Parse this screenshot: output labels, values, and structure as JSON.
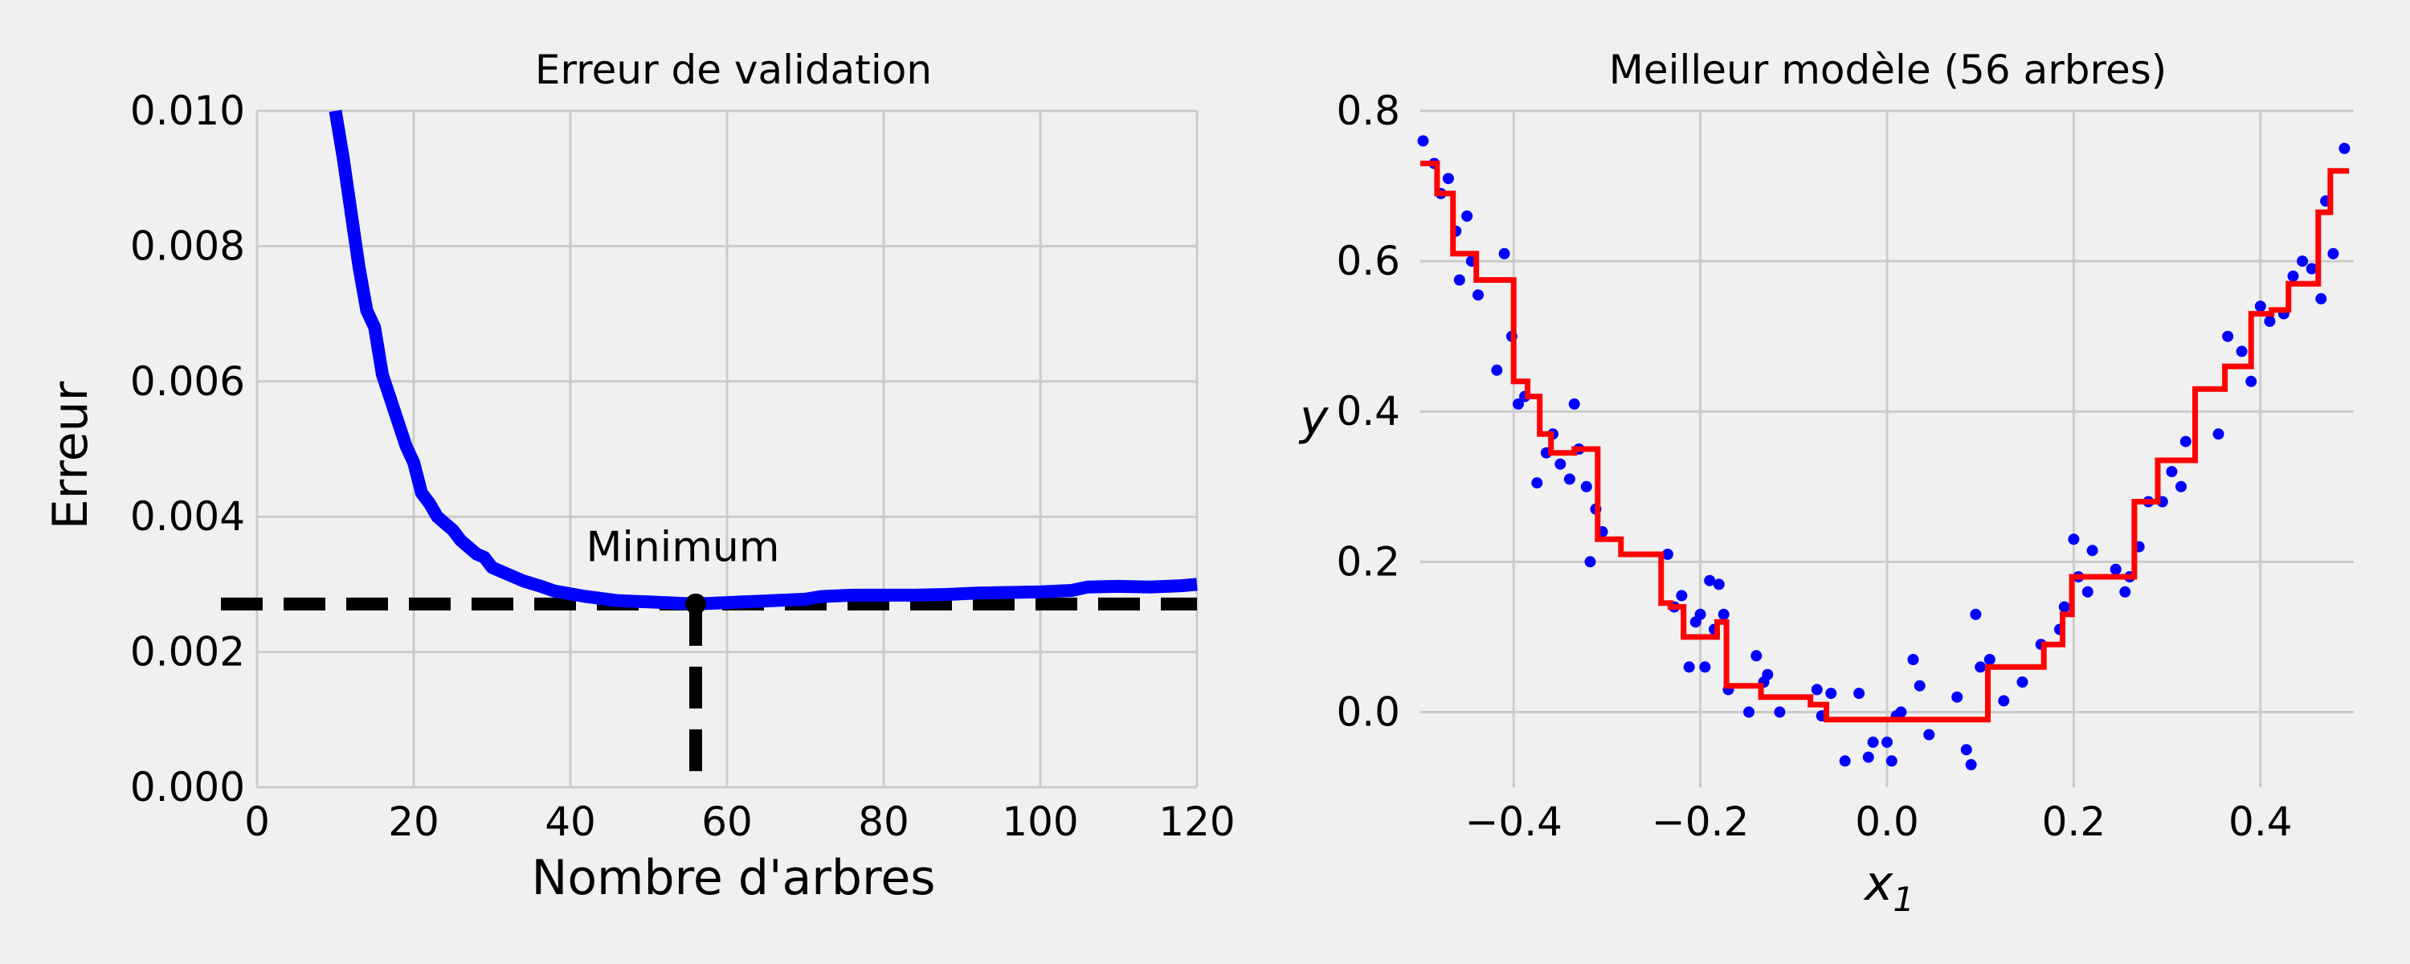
{
  "chart_data": [
    {
      "type": "line",
      "title": "Erreur de validation",
      "xlabel": "Nombre d'arbres",
      "ylabel": "Erreur",
      "xlim": [
        0,
        120
      ],
      "ylim": [
        0.0,
        0.01
      ],
      "xticks": [
        "0",
        "20",
        "40",
        "60",
        "80",
        "100",
        "120"
      ],
      "yticks": [
        "0.000",
        "0.002",
        "0.004",
        "0.006",
        "0.008",
        "0.010"
      ],
      "grid": true,
      "series": [
        {
          "color": "#0000ff",
          "x": [
            10,
            11,
            12,
            13,
            14,
            15,
            16,
            17,
            18,
            19,
            20,
            21,
            22,
            23,
            24,
            25,
            26,
            27,
            28,
            29,
            30,
            32,
            34,
            36,
            38,
            40,
            42,
            44,
            46,
            48,
            50,
            52,
            54,
            56,
            58,
            60,
            62,
            64,
            66,
            68,
            70,
            72,
            74,
            76,
            78,
            80,
            84,
            88,
            92,
            96,
            100,
            104,
            106,
            110,
            114,
            118,
            120
          ],
          "y": [
            0.01,
            0.0093,
            0.0085,
            0.0077,
            0.00705,
            0.0068,
            0.0061,
            0.00575,
            0.0054,
            0.00505,
            0.0048,
            0.00435,
            0.0042,
            0.004,
            0.0039,
            0.0038,
            0.00365,
            0.00355,
            0.00345,
            0.0034,
            0.00325,
            0.00315,
            0.00305,
            0.00298,
            0.0029,
            0.00286,
            0.00282,
            0.00279,
            0.00276,
            0.00275,
            0.00274,
            0.00273,
            0.00272,
            0.00271,
            0.00272,
            0.00273,
            0.00274,
            0.00275,
            0.00276,
            0.00277,
            0.00278,
            0.00282,
            0.00283,
            0.00284,
            0.00284,
            0.00284,
            0.00284,
            0.00285,
            0.00287,
            0.00288,
            0.00289,
            0.00291,
            0.00296,
            0.00297,
            0.00296,
            0.00298,
            0.003
          ]
        }
      ],
      "reference_lines": [
        {
          "orientation": "horizontal",
          "y": 0.00271,
          "style": "dashed",
          "color": "#000000"
        },
        {
          "orientation": "vertical",
          "x": 56,
          "y_to": 0.00271,
          "style": "dashed",
          "color": "#000000"
        }
      ],
      "marker": {
        "x": 56,
        "y": 0.00271,
        "color": "#000000"
      },
      "annotation": {
        "text": "Minimum",
        "x": 42,
        "y": 0.0032
      }
    },
    {
      "type": "scatter",
      "title": "Meilleur modèle (56 arbres)",
      "xlabel_base": "x",
      "xlabel_sub": "1",
      "ylabel": "y",
      "xlim": [
        -0.5,
        0.5
      ],
      "ylim": [
        -0.1,
        0.8
      ],
      "xticks": [
        "−0.4",
        "−0.2",
        "0.0",
        "0.2",
        "0.4"
      ],
      "yticks": [
        "0.0",
        "0.2",
        "0.4",
        "0.6",
        "0.8"
      ],
      "grid": true,
      "points_color": "#0000ff",
      "points": [
        [
          -0.497,
          0.76
        ],
        [
          -0.485,
          0.73
        ],
        [
          -0.478,
          0.69
        ],
        [
          -0.47,
          0.71
        ],
        [
          -0.462,
          0.64
        ],
        [
          -0.458,
          0.575
        ],
        [
          -0.45,
          0.66
        ],
        [
          -0.445,
          0.6
        ],
        [
          -0.438,
          0.555
        ],
        [
          -0.418,
          0.455
        ],
        [
          -0.41,
          0.61
        ],
        [
          -0.402,
          0.5
        ],
        [
          -0.395,
          0.41
        ],
        [
          -0.388,
          0.42
        ],
        [
          -0.375,
          0.305
        ],
        [
          -0.365,
          0.345
        ],
        [
          -0.358,
          0.37
        ],
        [
          -0.35,
          0.33
        ],
        [
          -0.34,
          0.31
        ],
        [
          -0.335,
          0.41
        ],
        [
          -0.33,
          0.35
        ],
        [
          -0.322,
          0.3
        ],
        [
          -0.318,
          0.2
        ],
        [
          -0.312,
          0.27
        ],
        [
          -0.305,
          0.24
        ],
        [
          -0.235,
          0.21
        ],
        [
          -0.228,
          0.14
        ],
        [
          -0.22,
          0.155
        ],
        [
          -0.212,
          0.06
        ],
        [
          -0.205,
          0.12
        ],
        [
          -0.2,
          0.13
        ],
        [
          -0.195,
          0.06
        ],
        [
          -0.19,
          0.175
        ],
        [
          -0.185,
          0.11
        ],
        [
          -0.18,
          0.17
        ],
        [
          -0.175,
          0.13
        ],
        [
          -0.17,
          0.03
        ],
        [
          -0.148,
          0.0
        ],
        [
          -0.14,
          0.075
        ],
        [
          -0.132,
          0.04
        ],
        [
          -0.128,
          0.05
        ],
        [
          -0.115,
          0.0
        ],
        [
          -0.075,
          0.03
        ],
        [
          -0.07,
          -0.005
        ],
        [
          -0.06,
          0.025
        ],
        [
          -0.045,
          -0.065
        ],
        [
          -0.03,
          0.025
        ],
        [
          -0.02,
          -0.06
        ],
        [
          -0.015,
          -0.04
        ],
        [
          0.0,
          -0.04
        ],
        [
          0.005,
          -0.065
        ],
        [
          0.01,
          -0.005
        ],
        [
          0.015,
          0.0
        ],
        [
          0.028,
          0.07
        ],
        [
          0.035,
          0.035
        ],
        [
          0.045,
          -0.03
        ],
        [
          0.075,
          0.02
        ],
        [
          0.085,
          -0.05
        ],
        [
          0.09,
          -0.07
        ],
        [
          0.095,
          0.13
        ],
        [
          0.1,
          0.06
        ],
        [
          0.11,
          0.07
        ],
        [
          0.125,
          0.015
        ],
        [
          0.145,
          0.04
        ],
        [
          0.165,
          0.09
        ],
        [
          0.185,
          0.11
        ],
        [
          0.19,
          0.14
        ],
        [
          0.2,
          0.23
        ],
        [
          0.205,
          0.18
        ],
        [
          0.215,
          0.16
        ],
        [
          0.22,
          0.215
        ],
        [
          0.245,
          0.19
        ],
        [
          0.255,
          0.16
        ],
        [
          0.26,
          0.18
        ],
        [
          0.27,
          0.22
        ],
        [
          0.28,
          0.28
        ],
        [
          0.295,
          0.28
        ],
        [
          0.305,
          0.32
        ],
        [
          0.315,
          0.3
        ],
        [
          0.32,
          0.36
        ],
        [
          0.355,
          0.37
        ],
        [
          0.365,
          0.5
        ],
        [
          0.38,
          0.48
        ],
        [
          0.39,
          0.44
        ],
        [
          0.4,
          0.54
        ],
        [
          0.41,
          0.52
        ],
        [
          0.425,
          0.53
        ],
        [
          0.435,
          0.58
        ],
        [
          0.445,
          0.6
        ],
        [
          0.455,
          0.59
        ],
        [
          0.465,
          0.55
        ],
        [
          0.47,
          0.68
        ],
        [
          0.478,
          0.61
        ],
        [
          0.49,
          0.75
        ]
      ],
      "prediction_color": "#ff0000",
      "prediction_steps": [
        [
          -0.5,
          0.73
        ],
        [
          -0.482,
          0.69
        ],
        [
          -0.465,
          0.61
        ],
        [
          -0.452,
          0.61
        ],
        [
          -0.44,
          0.575
        ],
        [
          -0.4,
          0.44
        ],
        [
          -0.385,
          0.42
        ],
        [
          -0.372,
          0.37
        ],
        [
          -0.36,
          0.345
        ],
        [
          -0.335,
          0.35
        ],
        [
          -0.31,
          0.23
        ],
        [
          -0.285,
          0.21
        ],
        [
          -0.242,
          0.145
        ],
        [
          -0.232,
          0.14
        ],
        [
          -0.218,
          0.1
        ],
        [
          -0.195,
          0.1
        ],
        [
          -0.182,
          0.12
        ],
        [
          -0.172,
          0.035
        ],
        [
          -0.135,
          0.02
        ],
        [
          -0.082,
          0.01
        ],
        [
          -0.065,
          -0.01
        ],
        [
          0.005,
          -0.01
        ],
        [
          0.1,
          -0.01
        ],
        [
          0.108,
          0.06
        ],
        [
          0.148,
          0.06
        ],
        [
          0.168,
          0.09
        ],
        [
          0.188,
          0.13
        ],
        [
          0.198,
          0.18
        ],
        [
          0.265,
          0.28
        ],
        [
          0.29,
          0.335
        ],
        [
          0.33,
          0.43
        ],
        [
          0.362,
          0.46
        ],
        [
          0.39,
          0.53
        ],
        [
          0.412,
          0.535
        ],
        [
          0.43,
          0.57
        ],
        [
          0.462,
          0.665
        ],
        [
          0.475,
          0.72
        ],
        [
          0.495,
          0.72
        ]
      ]
    }
  ]
}
